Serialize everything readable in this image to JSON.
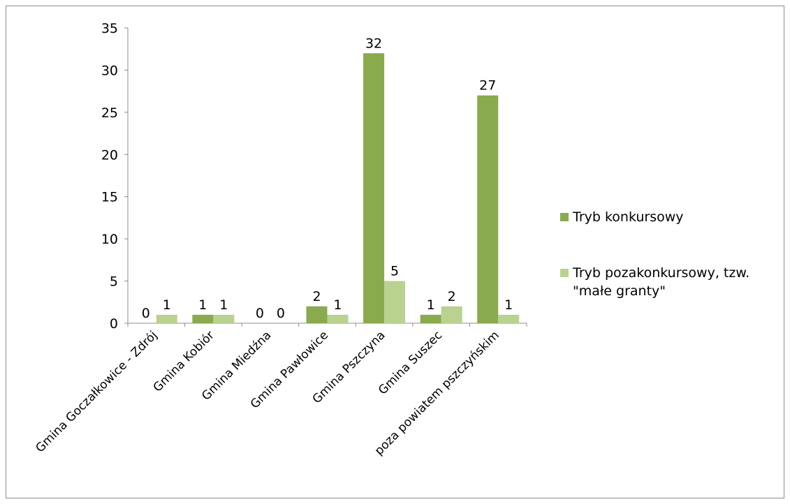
{
  "chart_data": {
    "type": "bar",
    "categories": [
      "Gmina Goczałkowice - Zdrój",
      "Gmina Kobiór",
      "Gmina Miedźna",
      "Gmina Pawłowice",
      "Gmina Pszczyna",
      "Gmina Suszec",
      "poza powiatem pszczyńskim"
    ],
    "series": [
      {
        "name": "Tryb konkursowy",
        "values": [
          0,
          1,
          0,
          2,
          32,
          1,
          27
        ],
        "color": "#8aaa4e"
      },
      {
        "name": "Tryb pozakonkursowy, tzw. \"małe granty\"",
        "values": [
          1,
          1,
          0,
          1,
          5,
          2,
          1
        ],
        "color": "#b9d290"
      }
    ],
    "ylim": [
      0,
      35
    ],
    "yticks": [
      "0",
      "5",
      "10",
      "15",
      "20",
      "25",
      "30",
      "35"
    ],
    "legend_lines": [
      [
        "Tryb konkursowy"
      ],
      [
        "Tryb pozakonkursowy, tzw.",
        "\"małe granty\""
      ]
    ],
    "grid": false,
    "legend_position": "right",
    "title": "",
    "xlabel": "",
    "ylabel": ""
  }
}
